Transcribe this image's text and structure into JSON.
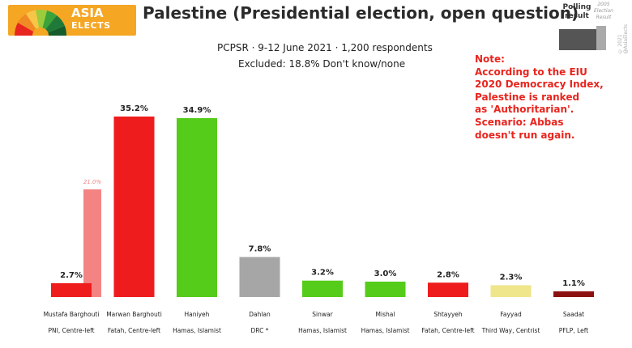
{
  "header": {
    "logo_line1": "ASIA",
    "logo_line2": "ELECTS",
    "title": "Palestine (Presidential election, open question)",
    "legend_polling": "Polling result",
    "legend_previous": "2005 Election Result",
    "copyright": "© 2021 @AsiaElects"
  },
  "subtitle_line1": "PCPSR · 9-12 June 2021 · 1,200 respondents",
  "subtitle_line2": "Excluded: 18.8% Don't know/none",
  "note": [
    "Note:",
    "According to the EIU",
    "2020 Democracy Index,",
    "Palestine is ranked",
    "as 'Authoritarian'.",
    "Scenario: Abbas",
    "doesn't run again."
  ],
  "colors": {
    "fatah_red": "#ee1c1c",
    "hamas_green": "#55cc1a",
    "drc_grey": "#a6a6a6",
    "third_way_yellow": "#efe58a",
    "pflp_darkred": "#8b1010",
    "prev_result_pink": "#f48484",
    "logo_orange": "#f5a623"
  },
  "chart_data": {
    "type": "bar",
    "value_suffix": "%",
    "ylim": [
      0,
      40
    ],
    "categories": [
      "Mustafa Barghouti",
      "Marwan Barghouti",
      "Haniyeh",
      "Dahlan",
      "Sinwar",
      "Mishal",
      "Shtayyeh",
      "Fayyad",
      "Saadat"
    ],
    "parties": [
      "PNI, Centre-left",
      "Fatah, Centre-left",
      "Hamas, Islamist",
      "DRC *",
      "Hamas, Islamist",
      "Hamas, Islamist",
      "Fatah, Centre-left",
      "Third Way, Centrist",
      "PFLP, Left"
    ],
    "series": [
      {
        "values": [
          2.7,
          35.2,
          34.9,
          7.8,
          3.2,
          3.0,
          2.8,
          2.3,
          1.1
        ],
        "labels": [
          "2.7%",
          "35.2%",
          "34.9%",
          "7.8%",
          "3.2%",
          "3.0%",
          "2.8%",
          "2.3%",
          "1.1%"
        ],
        "colors": [
          "#ee1c1c",
          "#ee1c1c",
          "#55cc1a",
          "#a6a6a6",
          "#55cc1a",
          "#55cc1a",
          "#ee1c1c",
          "#efe58a",
          "#8b1010"
        ]
      }
    ],
    "previous_result": {
      "category": "Mustafa Barghouti",
      "value": 21.0,
      "label": "21.0%",
      "color": "#f48484"
    }
  }
}
